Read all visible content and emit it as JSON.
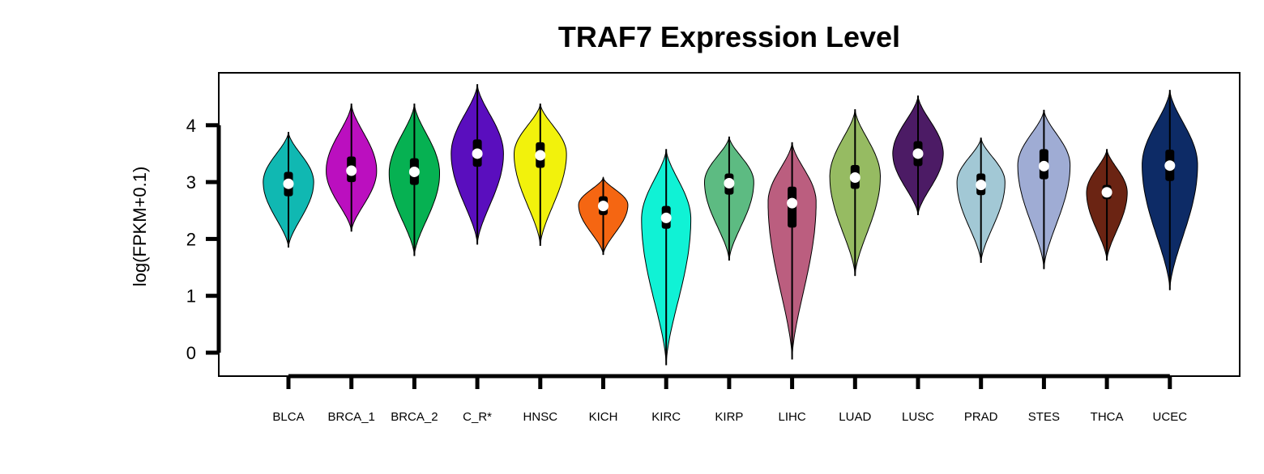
{
  "chart_data": {
    "type": "violin",
    "title": "TRAF7 Expression Level",
    "xlabel": "",
    "ylabel": "log(FPKM+0.1)",
    "ylim": [
      -0.4,
      4.9
    ],
    "yticks": [
      0,
      1,
      2,
      3,
      4
    ],
    "grid": false,
    "legend": "none",
    "categories": [
      "BLCA",
      "BRCA_1",
      "BRCA_2",
      "C_R*",
      "HNSC",
      "KICH",
      "KIRC",
      "KIRP",
      "LIHC",
      "LUAD",
      "LUSC",
      "PRAD",
      "STES",
      "THCA",
      "UCEC"
    ],
    "colors": [
      "#10B8B2",
      "#BB0FBF",
      "#06B152",
      "#5A0EBE",
      "#F2F20C",
      "#F56612",
      "#10F2D5",
      "#5DBB82",
      "#BB5E7F",
      "#96BB62",
      "#4C1B65",
      "#A2C8D5",
      "#9FACD4",
      "#6B2413",
      "#0D2B66"
    ],
    "violins": [
      {
        "min": 1.85,
        "max": 3.88,
        "mode": 3.0,
        "width": 0.82,
        "q1": 2.75,
        "median": 2.97,
        "q3": 3.18
      },
      {
        "min": 2.13,
        "max": 4.38,
        "mode": 3.2,
        "width": 0.82,
        "q1": 3.0,
        "median": 3.2,
        "q3": 3.45
      },
      {
        "min": 1.7,
        "max": 4.38,
        "mode": 3.15,
        "width": 0.82,
        "q1": 2.95,
        "median": 3.18,
        "q3": 3.42
      },
      {
        "min": 1.9,
        "max": 4.72,
        "mode": 3.5,
        "width": 0.85,
        "q1": 3.27,
        "median": 3.5,
        "q3": 3.75
      },
      {
        "min": 1.88,
        "max": 4.38,
        "mode": 3.5,
        "width": 0.85,
        "q1": 3.25,
        "median": 3.47,
        "q3": 3.7
      },
      {
        "min": 1.72,
        "max": 3.08,
        "mode": 2.6,
        "width": 0.8,
        "q1": 2.42,
        "median": 2.58,
        "q3": 2.75
      },
      {
        "min": -0.22,
        "max": 3.58,
        "mode": 2.35,
        "width": 0.8,
        "q1": 2.18,
        "median": 2.37,
        "q3": 2.58
      },
      {
        "min": 1.62,
        "max": 3.8,
        "mode": 3.0,
        "width": 0.8,
        "q1": 2.78,
        "median": 2.98,
        "q3": 3.15
      },
      {
        "min": -0.12,
        "max": 3.7,
        "mode": 2.65,
        "width": 0.78,
        "q1": 2.2,
        "median": 2.63,
        "q3": 2.92
      },
      {
        "min": 1.35,
        "max": 4.28,
        "mode": 3.1,
        "width": 0.82,
        "q1": 2.88,
        "median": 3.08,
        "q3": 3.3
      },
      {
        "min": 2.42,
        "max": 4.52,
        "mode": 3.5,
        "width": 0.82,
        "q1": 3.28,
        "median": 3.5,
        "q3": 3.72
      },
      {
        "min": 1.58,
        "max": 3.78,
        "mode": 3.0,
        "width": 0.78,
        "q1": 2.77,
        "median": 2.95,
        "q3": 3.15
      },
      {
        "min": 1.47,
        "max": 4.27,
        "mode": 3.3,
        "width": 0.85,
        "q1": 3.05,
        "median": 3.28,
        "q3": 3.58
      },
      {
        "min": 1.62,
        "max": 3.58,
        "mode": 2.82,
        "width": 0.66,
        "q1": 2.7,
        "median": 2.82,
        "q3": 2.95
      },
      {
        "min": 1.1,
        "max": 4.62,
        "mode": 3.3,
        "width": 0.9,
        "q1": 3.02,
        "median": 3.29,
        "q3": 3.57
      }
    ]
  }
}
